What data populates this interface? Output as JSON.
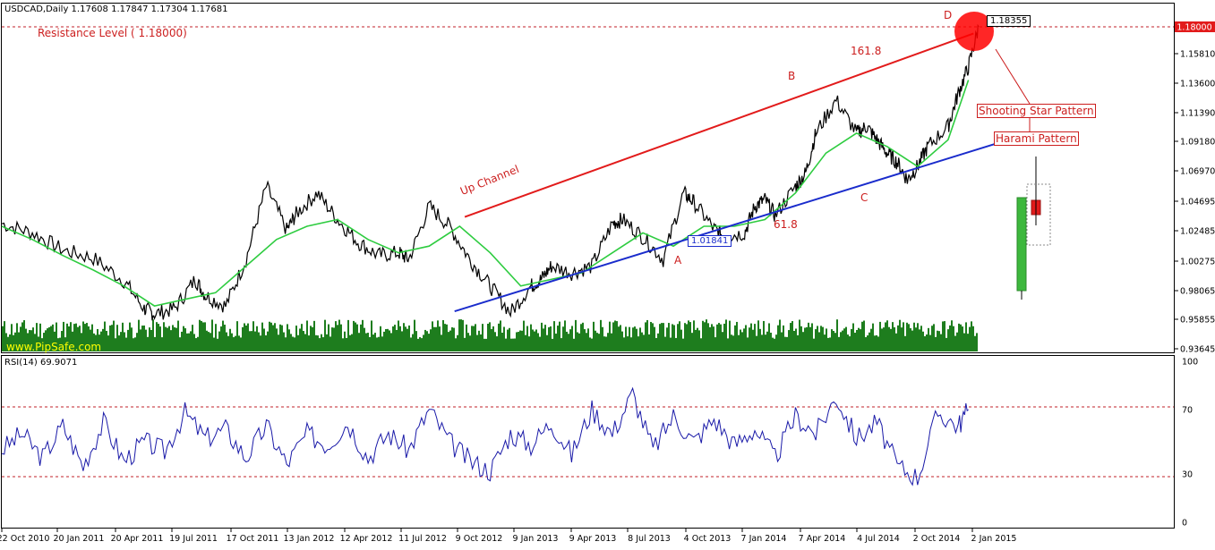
{
  "header": {
    "symbol_line": "USDCAD,Daily  1.17608 1.17847 1.17304 1.17681",
    "resistance_label": "Resistance Level ( 1.18000)",
    "watermark": "www.PipSafe.com"
  },
  "rsi_panel": {
    "title": "RSI(14) 69.9071"
  },
  "annotations": {
    "up_channel": "Up Channel",
    "fib_top": "161.8",
    "fib_bottom": "61.8",
    "point_a": "A",
    "point_b": "B",
    "point_c": "C",
    "point_d": "D",
    "low_box": "1.01841",
    "high_box": "1.18355",
    "shooting_star": "Shooting Star Pattern",
    "harami": "Harami Pattern"
  },
  "colors": {
    "background": "#ffffff",
    "price": "#000000",
    "moving_average": "#2ecc40",
    "volume": "#1e7d1e",
    "channel_top": "#e21b1b",
    "channel_bottom": "#1a2ccc",
    "rsi": "#1a1aa8",
    "level_line": "#c0202a",
    "annotation_red": "#cc1e1e"
  },
  "chart_data": [
    {
      "type": "line",
      "title": "USDCAD,Daily",
      "y_ticks": [
        "1.18000",
        "1.15810",
        "1.13600",
        "1.11390",
        "1.09180",
        "1.06970",
        "1.04695",
        "1.02485",
        "1.00275",
        "0.98065",
        "0.95855",
        "0.93645"
      ],
      "ylim": [
        0.93645,
        1.19
      ],
      "x_ticks": [
        "22 Oct 2010",
        "20 Jan 2011",
        "20 Apr 2011",
        "19 Jul 2011",
        "17 Oct 2011",
        "13 Jan 2012",
        "12 Apr 2012",
        "11 Jul 2012",
        "9 Oct 2012",
        "9 Jan 2013",
        "9 Apr 2013",
        "8 Jul 2013",
        "4 Oct 2013",
        "7 Jan 2014",
        "7 Apr 2014",
        "4 Jul 2014",
        "2 Oct 2014",
        "2 Jan 2015"
      ],
      "resistance_level": 1.18,
      "series": [
        {
          "kind": "price",
          "x": [
            0,
            3,
            6,
            9,
            12,
            14,
            15,
            17,
            19,
            20,
            22,
            24,
            26,
            28,
            29,
            31,
            33,
            35,
            37,
            39,
            40,
            42,
            44,
            46,
            48,
            50,
            52,
            53,
            54,
            56,
            58,
            60,
            61,
            63,
            65,
            67,
            68,
            70,
            71,
            73,
            74,
            75,
            76,
            78,
            79,
            80,
            82,
            84,
            85,
            86,
            87,
            88,
            89,
            90,
            91,
            93,
            94,
            95,
            96
          ],
          "values": [
            1.032,
            1.025,
            1.012,
            1.006,
            0.989,
            0.968,
            0.964,
            0.968,
            0.99,
            0.978,
            0.97,
            1.005,
            1.06,
            1.027,
            1.04,
            1.055,
            1.035,
            1.018,
            1.008,
            1.01,
            1.005,
            1.045,
            1.03,
            1.005,
            0.985,
            0.965,
            0.985,
            0.99,
            1.0,
            0.995,
            1.0,
            1.032,
            1.035,
            1.022,
            1.005,
            1.055,
            1.048,
            1.028,
            1.022,
            1.025,
            1.045,
            1.05,
            1.038,
            1.06,
            1.07,
            1.1,
            1.125,
            1.1,
            1.105,
            1.095,
            1.085,
            1.078,
            1.065,
            1.075,
            1.09,
            1.105,
            1.13,
            1.15,
            1.18
          ]
        },
        {
          "kind": "moving_average",
          "x": [
            0,
            3,
            6,
            9,
            12,
            15,
            18,
            21,
            24,
            27,
            30,
            33,
            36,
            39,
            42,
            45,
            48,
            51,
            54,
            57,
            60,
            63,
            66,
            69,
            72,
            75,
            78,
            81,
            84,
            87,
            90,
            93,
            95
          ],
          "values": [
            1.03,
            1.02,
            1.008,
            0.997,
            0.985,
            0.97,
            0.975,
            0.98,
            1.0,
            1.02,
            1.03,
            1.035,
            1.02,
            1.01,
            1.015,
            1.03,
            1.01,
            0.985,
            0.99,
            0.995,
            1.01,
            1.025,
            1.015,
            1.03,
            1.03,
            1.035,
            1.055,
            1.085,
            1.1,
            1.09,
            1.075,
            1.095,
            1.14
          ]
        },
        {
          "kind": "channel_top",
          "x": [
            45.5,
            95.5
          ],
          "values": [
            1.037,
            1.175
          ]
        },
        {
          "kind": "channel_bottom",
          "x": [
            44.5,
            98.5
          ],
          "values": [
            0.966,
            1.094
          ]
        }
      ]
    },
    {
      "type": "line",
      "title": "RSI(14) 69.9071",
      "y_ticks": [
        "100",
        "70",
        "30",
        "0"
      ],
      "ylim": [
        0,
        100
      ],
      "levels": [
        70,
        30
      ],
      "series": [
        {
          "name": "RSI(14)",
          "x": [
            0,
            2,
            4,
            6,
            8,
            10,
            12,
            14,
            16,
            18,
            20,
            22,
            24,
            26,
            28,
            30,
            32,
            34,
            36,
            38,
            40,
            42,
            44,
            46,
            48,
            50,
            52,
            54,
            56,
            58,
            60,
            62,
            64,
            66,
            68,
            70,
            72,
            74,
            76,
            78,
            80,
            82,
            84,
            86,
            88,
            90,
            92,
            94,
            95
          ],
          "values": [
            45,
            55,
            40,
            60,
            35,
            62,
            38,
            50,
            44,
            68,
            52,
            58,
            40,
            60,
            36,
            55,
            48,
            62,
            40,
            55,
            45,
            70,
            50,
            38,
            32,
            55,
            48,
            62,
            42,
            70,
            55,
            80,
            45,
            66,
            50,
            64,
            48,
            58,
            40,
            66,
            55,
            78,
            52,
            62,
            35,
            28,
            68,
            60,
            70
          ]
        }
      ]
    }
  ]
}
